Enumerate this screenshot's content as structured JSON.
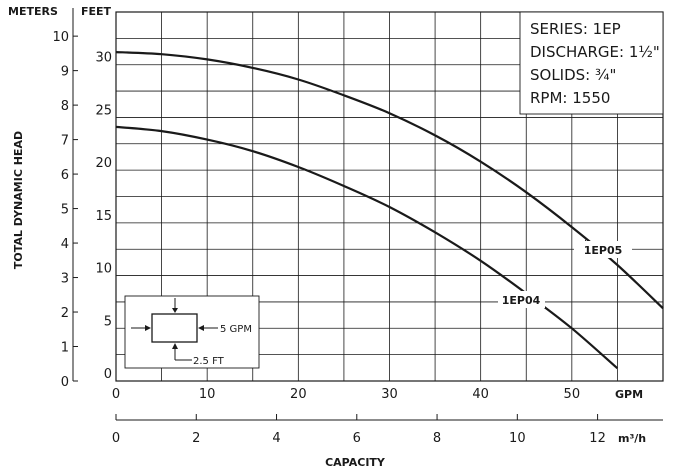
{
  "chart_data": {
    "type": "line",
    "title": "",
    "ylabel": "TOTAL DYNAMIC HEAD",
    "xlabel": "CAPACITY",
    "y_axes": [
      {
        "unit": "METERS",
        "range": [
          0,
          10.7
        ],
        "ticks": [
          "0",
          "1",
          "2",
          "3",
          "4",
          "5",
          "6",
          "7",
          "8",
          "9",
          "10"
        ]
      },
      {
        "unit": "FEET",
        "range": [
          0,
          35
        ],
        "ticks": [
          "0",
          "5",
          "10",
          "15",
          "20",
          "25",
          "30"
        ]
      }
    ],
    "x_axes": [
      {
        "unit": "GPM",
        "range": [
          0,
          60
        ],
        "ticks": [
          "0",
          "10",
          "20",
          "30",
          "40",
          "50"
        ]
      },
      {
        "unit": "m³/h",
        "range": [
          0,
          13.63
        ],
        "ticks": [
          "0",
          "2",
          "4",
          "6",
          "8",
          "10",
          "12"
        ]
      }
    ],
    "grid": true,
    "series": [
      {
        "name": "1EP05",
        "x": [
          0,
          5,
          10,
          15,
          20,
          25,
          30,
          35,
          40,
          45,
          50,
          55,
          60
        ],
        "y": [
          31.2,
          31.0,
          30.5,
          29.7,
          28.6,
          27.1,
          25.4,
          23.3,
          20.8,
          17.9,
          14.6,
          11.0,
          6.9
        ]
      },
      {
        "name": "1EP04",
        "x": [
          0,
          5,
          10,
          15,
          20,
          25,
          30,
          35,
          40,
          45,
          50,
          55
        ],
        "y": [
          24.1,
          23.7,
          22.9,
          21.8,
          20.3,
          18.5,
          16.5,
          14.1,
          11.4,
          8.3,
          5.0,
          1.2
        ]
      }
    ],
    "info_box": [
      "SERIES: 1EP",
      "DISCHARGE: 1½\"",
      "SOLIDS: ¾\"",
      "RPM: 1550"
    ],
    "inset": {
      "gpm_label": "5 GPM",
      "ft_label": "2.5 FT"
    }
  }
}
